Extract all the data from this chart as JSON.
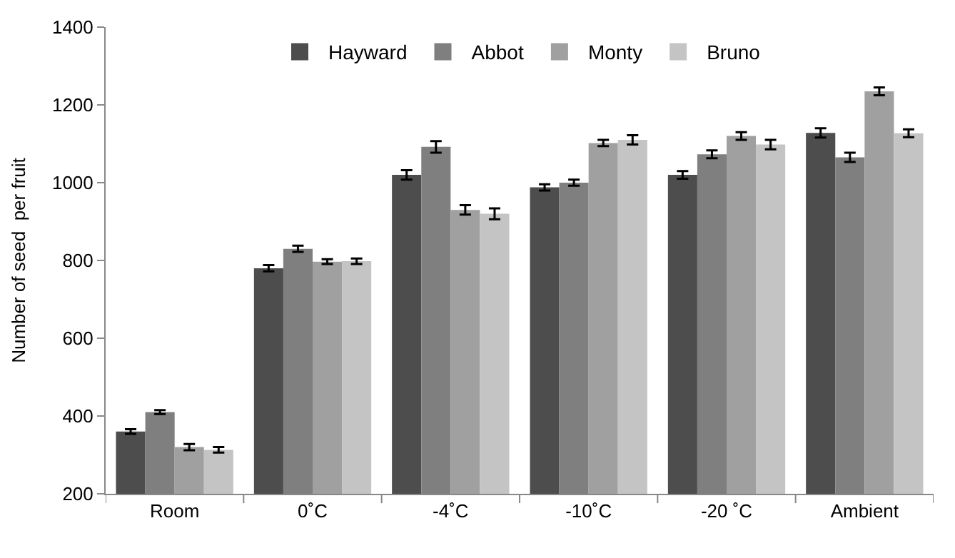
{
  "chart_data": {
    "type": "bar",
    "ylabel": "Number of seed  per fruit",
    "categories": [
      "Room",
      "0˚C",
      "-4˚C",
      "-10˚C",
      "-20 ˚C",
      "Ambient"
    ],
    "ylim": [
      200,
      1400
    ],
    "yticks": [
      200,
      400,
      600,
      800,
      1000,
      1200,
      1400
    ],
    "grid": false,
    "legend": "top",
    "series": [
      {
        "name": "Hayward",
        "color": "#4d4d4d",
        "values": [
          360,
          780,
          1020,
          988,
          1020,
          1128
        ],
        "errors": [
          6,
          8,
          12,
          8,
          10,
          12
        ]
      },
      {
        "name": "Abbot",
        "color": "#7f7f7f",
        "values": [
          410,
          830,
          1092,
          1000,
          1073,
          1065
        ],
        "errors": [
          5,
          8,
          15,
          8,
          10,
          12
        ]
      },
      {
        "name": "Monty",
        "color": "#a0a0a0",
        "values": [
          320,
          797,
          930,
          1102,
          1120,
          1235
        ],
        "errors": [
          8,
          6,
          12,
          8,
          10,
          10
        ]
      },
      {
        "name": "Bruno",
        "color": "#c4c4c4",
        "values": [
          313,
          798,
          920,
          1110,
          1098,
          1127
        ],
        "errors": [
          7,
          7,
          14,
          12,
          12,
          10
        ]
      }
    ]
  }
}
